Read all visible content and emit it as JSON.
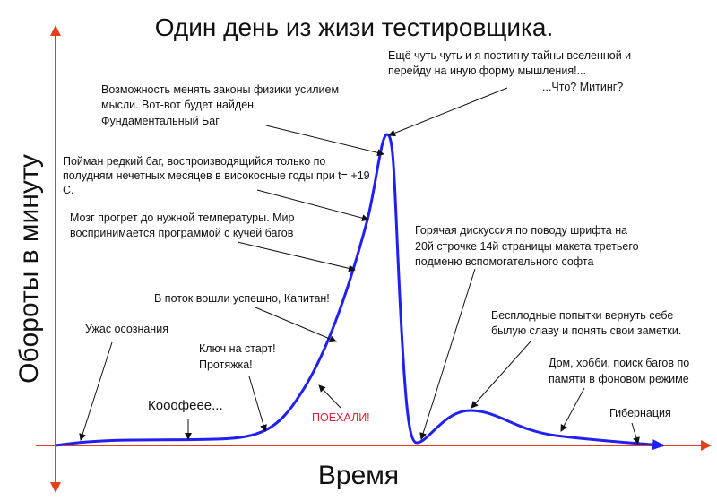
{
  "title": "Один день из жизи тестировщика.",
  "axes": {
    "x_label": "Время",
    "y_label": "Обороты в минуту",
    "axis_color": "#e0401c"
  },
  "curve_color": "#2020f0",
  "annotations": [
    {
      "id": "horror",
      "lines": [
        "Ужас осознания"
      ]
    },
    {
      "id": "coffee",
      "lines": [
        "Кооофеее..."
      ]
    },
    {
      "id": "start",
      "lines": [
        "Ключ на старт!",
        "Протяжка!"
      ]
    },
    {
      "id": "go",
      "lines": [
        "ПОЕХАЛИ!"
      ],
      "color": "#e0203a"
    },
    {
      "id": "flow",
      "lines": [
        "В поток вошли успешно, Капитан!"
      ]
    },
    {
      "id": "brain",
      "lines": [
        "Мозг прогрет до нужной температуры. Мир",
        "воспринимается программой с кучей багов"
      ]
    },
    {
      "id": "rarebug",
      "lines": [
        "Пойман редкий баг, воспроизводящийся только по",
        "полудням нечетных месяцев в високосные годы при t=  +19",
        "С."
      ]
    },
    {
      "id": "physics",
      "lines": [
        "Возможность менять законы физики усилием",
        "мысли. Вот-вот будет найден",
        "Фундаментальный Баг"
      ]
    },
    {
      "id": "peak",
      "lines": [
        "Ещё чуть чуть и я постигну тайны вселенной и",
        "перейду на иную форму мышления!...",
        "...Что? Митинг?"
      ]
    },
    {
      "id": "discussion",
      "lines": [
        "Горячая дискуссия по поводу шрифта на",
        "20й строчке 14й страницы макета третьего",
        "подменю вспомогательного софта"
      ]
    },
    {
      "id": "fruitless",
      "lines": [
        "Бесплодные попытки вернуть себе",
        "былую славу и понять свои заметки."
      ]
    },
    {
      "id": "home",
      "lines": [
        "Дом, хобби, поиск багов по",
        "памяти в фоновом режиме"
      ]
    },
    {
      "id": "hibernation",
      "lines": [
        "Гибернация"
      ]
    }
  ]
}
